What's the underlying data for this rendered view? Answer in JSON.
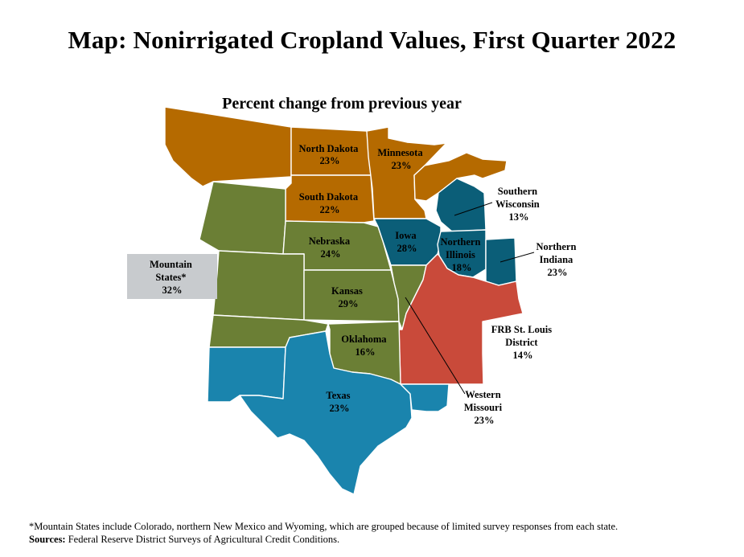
{
  "title": "Map: Nonirrigated Cropland Values, First Quarter 2022",
  "subtitle": "Percent change from previous year",
  "colors": {
    "orange": "#b56a00",
    "olive": "#6b7f35",
    "teal": "#0b5e78",
    "red": "#c94a3a",
    "blue": "#1a84ad",
    "gray_box": "#c8cbce"
  },
  "regions": [
    {
      "name": "North Dakota",
      "value": "23%"
    },
    {
      "name": "Minnesota",
      "value": "23%"
    },
    {
      "name": "South Dakota",
      "value": "22%"
    },
    {
      "name": "Southern",
      "name2": "Wisconsin",
      "value": "13%"
    },
    {
      "name": "Iowa",
      "value": "28%"
    },
    {
      "name": "Northern",
      "name2": "Illinois",
      "value": "18%"
    },
    {
      "name": "Northern",
      "name2": "Indiana",
      "value": "23%"
    },
    {
      "name": "Nebraska",
      "value": "24%"
    },
    {
      "name": "Mountain",
      "name2": "States*",
      "value": "32%"
    },
    {
      "name": "Kansas",
      "value": "29%"
    },
    {
      "name": "Oklahoma",
      "value": "16%"
    },
    {
      "name": "FRB St. Louis",
      "name2": "District",
      "value": "14%"
    },
    {
      "name": "Texas",
      "value": "23%"
    },
    {
      "name": "Western",
      "name2": "Missouri",
      "value": "23%"
    }
  ],
  "footnote": "*Mountain States include Colorado, northern New Mexico and Wyoming, which are grouped because of limited survey responses from each state.",
  "sources_label": "Sources:",
  "sources_text": "Federal Reserve District Surveys of Agricultural Credit Conditions."
}
